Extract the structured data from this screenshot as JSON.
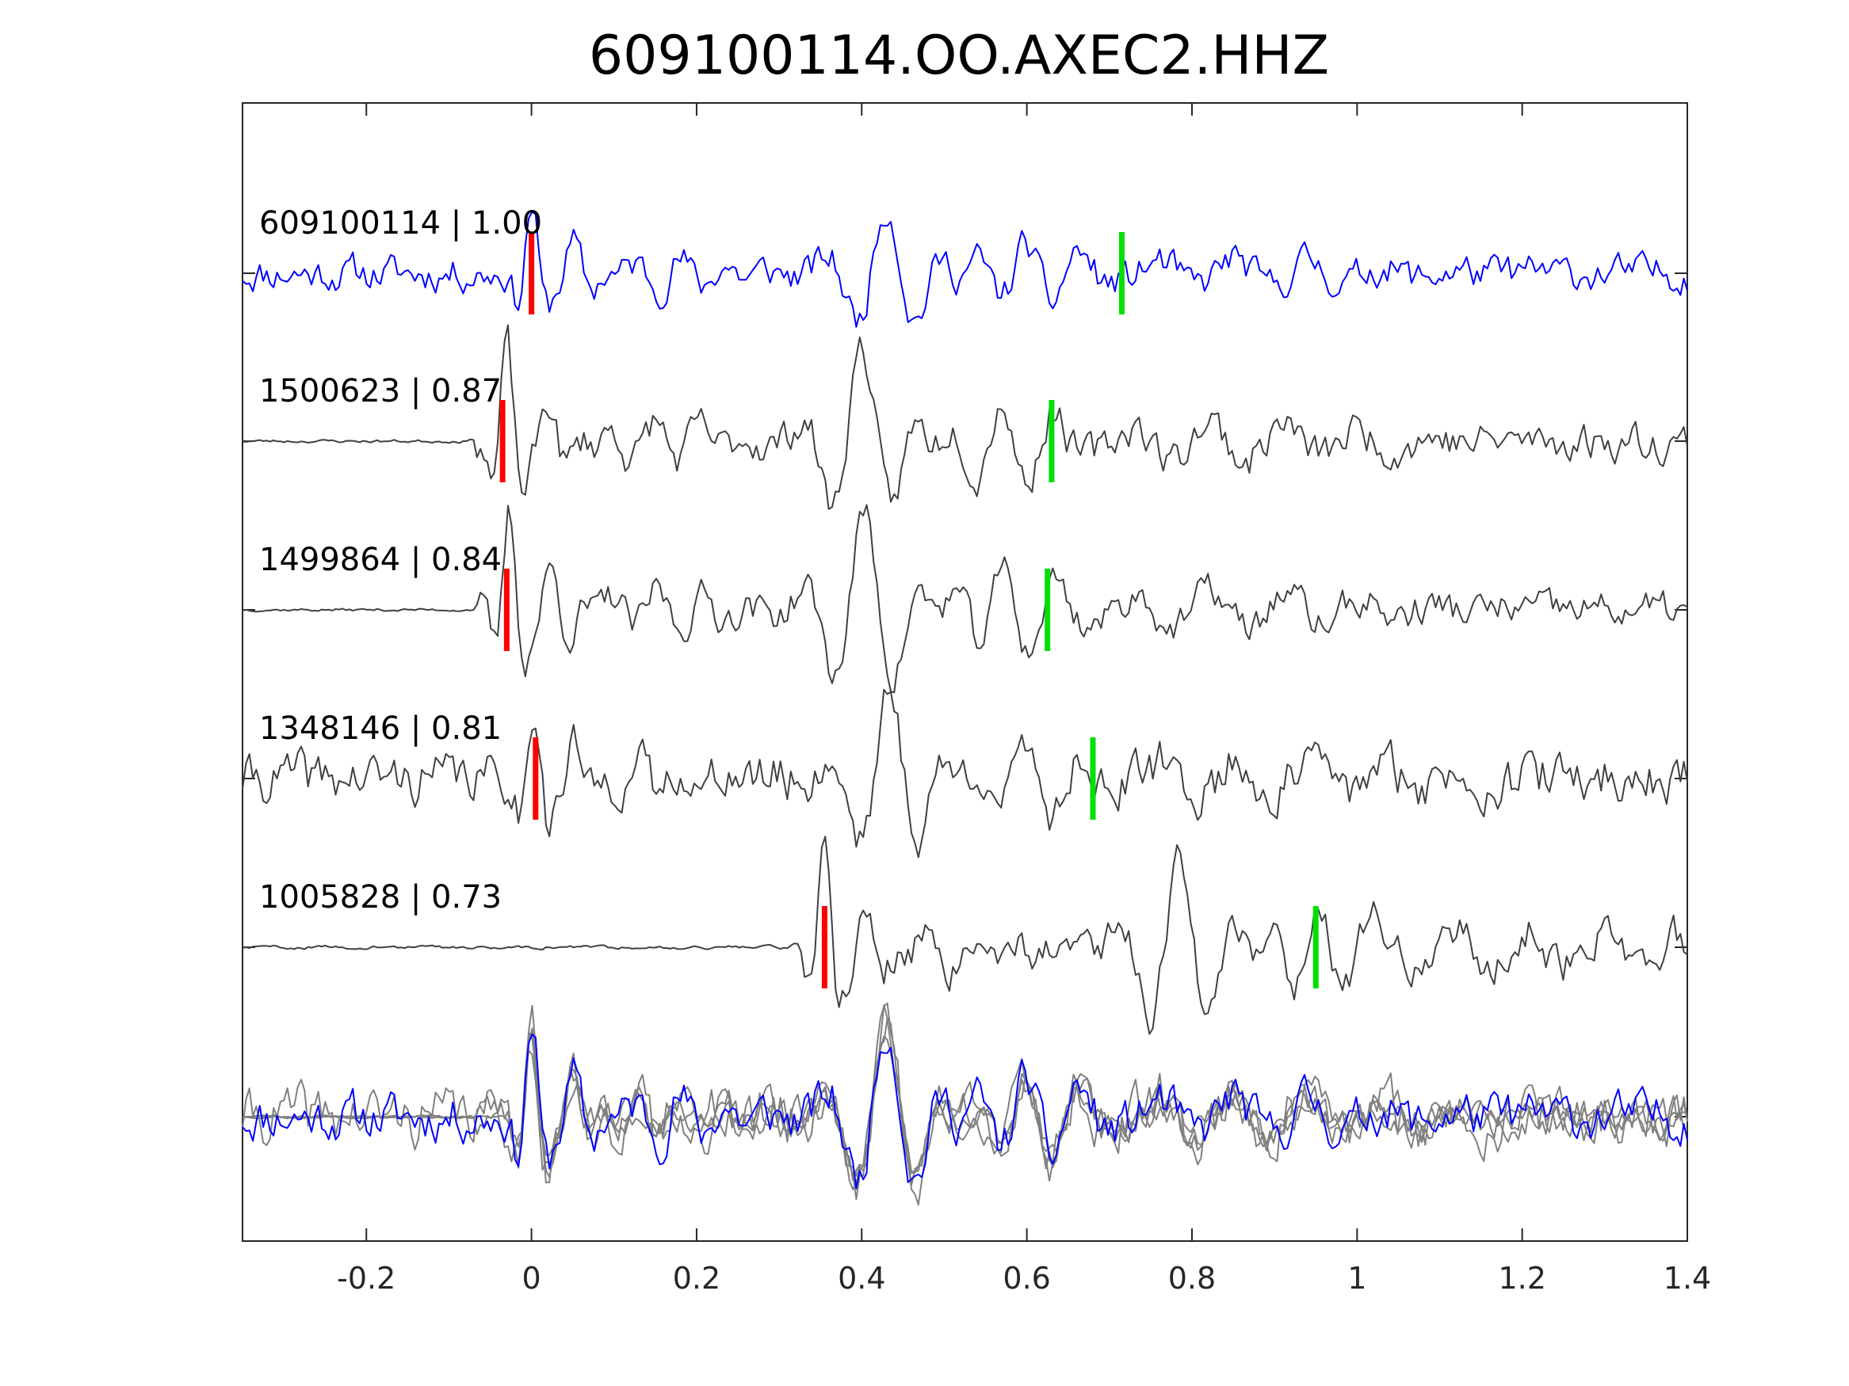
{
  "chart_data": {
    "type": "line",
    "title": "609100114.OO.AXEC2.HHZ",
    "xlim": [
      -0.35,
      1.4
    ],
    "xticks": [
      -0.2,
      0,
      0.2,
      0.4,
      0.6,
      0.8,
      1,
      1.2,
      1.4
    ],
    "xtick_labels": [
      "-0.2",
      "0",
      "0.2",
      "0.4",
      "0.6",
      "0.8",
      "1",
      "1.2",
      "1.4"
    ],
    "grid": false,
    "colors": {
      "template": "#0000ff",
      "match": "#404040",
      "overlay_match": "#808080",
      "p_pick": "#ff0000",
      "s_pick": "#00e000"
    },
    "traces": [
      {
        "event_id": "609100114",
        "cc": "1.00",
        "label": "609100114 | 1.00",
        "color": "#0000ff",
        "p_pick": 0.0,
        "s_pick": 0.715,
        "onset": -0.35
      },
      {
        "event_id": "1500623",
        "cc": "0.87",
        "label": "1500623 | 0.87",
        "color": "#404040",
        "p_pick": -0.035,
        "s_pick": 0.63,
        "onset": -0.07
      },
      {
        "event_id": "1499864",
        "cc": "0.84",
        "label": "1499864 | 0.84",
        "color": "#404040",
        "p_pick": -0.03,
        "s_pick": 0.625,
        "onset": -0.07
      },
      {
        "event_id": "1348146",
        "cc": "0.81",
        "label": "1348146 | 0.81",
        "color": "#404040",
        "p_pick": 0.005,
        "s_pick": 0.68,
        "onset": -0.35
      },
      {
        "event_id": "1005828",
        "cc": "0.73",
        "label": "1005828 | 0.73",
        "color": "#404040",
        "p_pick": 0.355,
        "s_pick": 0.95,
        "onset": 0.33
      }
    ]
  }
}
